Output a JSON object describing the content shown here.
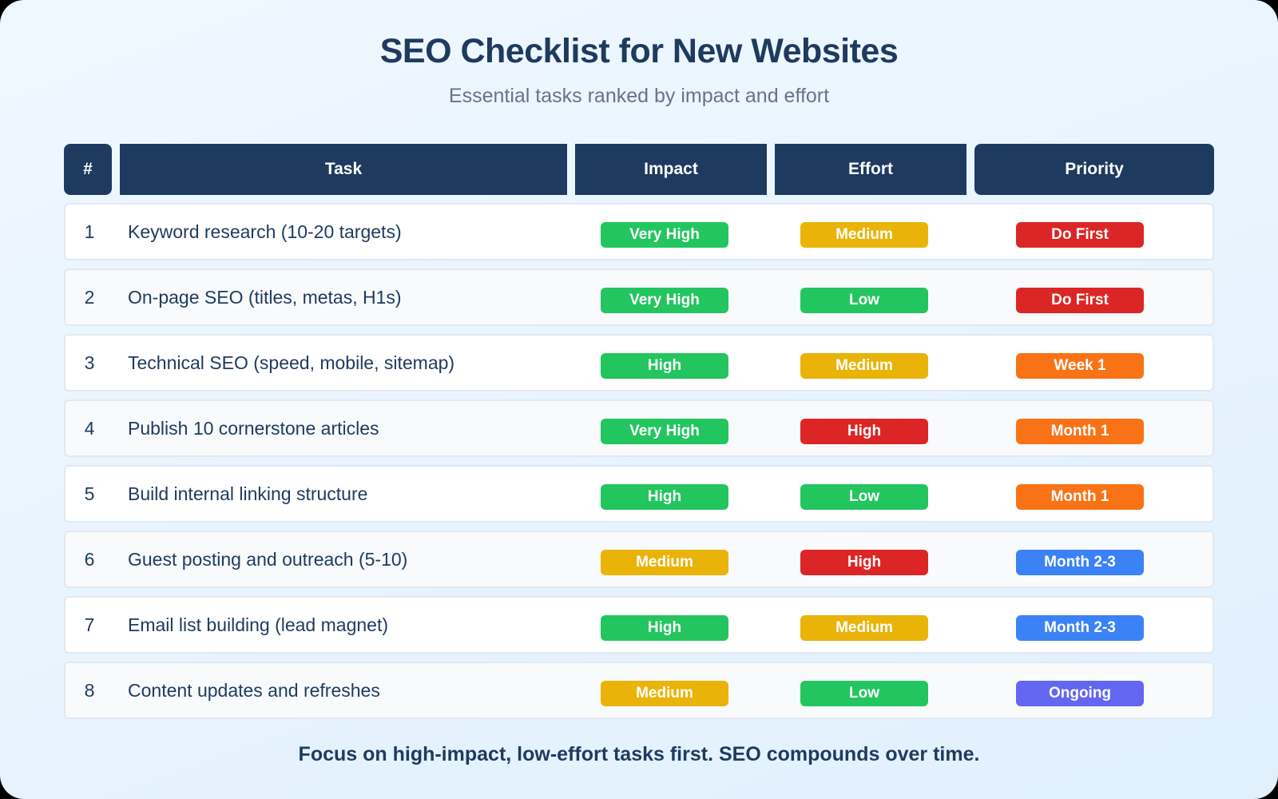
{
  "header": {
    "title": "SEO Checklist for New Websites",
    "subtitle": "Essential tasks ranked by impact and effort"
  },
  "table": {
    "columns": [
      "#",
      "Task",
      "Impact",
      "Effort",
      "Priority"
    ],
    "rows": [
      {
        "num": "1",
        "task": "Keyword research (10-20 targets)",
        "impact": "Very High",
        "effort": "Medium",
        "priority": "Do First"
      },
      {
        "num": "2",
        "task": "On-page SEO (titles, metas, H1s)",
        "impact": "Very High",
        "effort": "Low",
        "priority": "Do First"
      },
      {
        "num": "3",
        "task": "Technical SEO (speed, mobile, sitemap)",
        "impact": "High",
        "effort": "Medium",
        "priority": "Week 1"
      },
      {
        "num": "4",
        "task": "Publish 10 cornerstone articles",
        "impact": "Very High",
        "effort": "High",
        "priority": "Month 1"
      },
      {
        "num": "5",
        "task": "Build internal linking structure",
        "impact": "High",
        "effort": "Low",
        "priority": "Month 1"
      },
      {
        "num": "6",
        "task": "Guest posting and outreach (5-10)",
        "impact": "Medium",
        "effort": "High",
        "priority": "Month 2-3"
      },
      {
        "num": "7",
        "task": "Email list building (lead magnet)",
        "impact": "High",
        "effort": "Medium",
        "priority": "Month 2-3"
      },
      {
        "num": "8",
        "task": "Content updates and refreshes",
        "impact": "Medium",
        "effort": "Low",
        "priority": "Ongoing"
      }
    ]
  },
  "colors": {
    "header_bg": "#1e3a5f",
    "Very High": "#22c55e",
    "High_impact": "#22c55e",
    "Medium": "#eab308",
    "Low": "#22c55e",
    "High_effort": "#dc2626",
    "Do First": "#dc2626",
    "Week 1": "#f97316",
    "Month 1": "#f97316",
    "Month 2-3": "#3b82f6",
    "Ongoing": "#6366f1"
  },
  "footer": {
    "note": "Focus on high-impact, low-effort tasks first. SEO compounds over time."
  }
}
